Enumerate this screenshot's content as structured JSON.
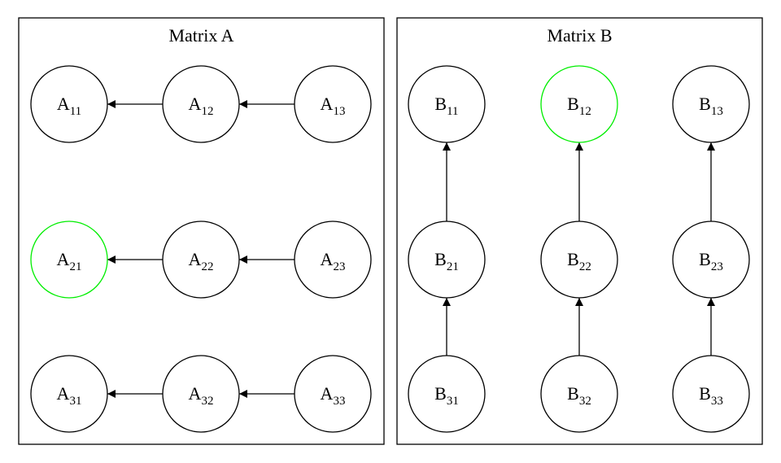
{
  "diagram": {
    "colors": {
      "stroke": "#000000",
      "highlight": "#00ee00",
      "background": "#ffffff"
    },
    "clusters": [
      {
        "id": "a",
        "title": "Matrix A",
        "nodes": [
          {
            "id": "A11",
            "letter": "A",
            "sub": "11",
            "highlight": false
          },
          {
            "id": "A12",
            "letter": "A",
            "sub": "12",
            "highlight": false
          },
          {
            "id": "A13",
            "letter": "A",
            "sub": "13",
            "highlight": false
          },
          {
            "id": "A21",
            "letter": "A",
            "sub": "21",
            "highlight": true
          },
          {
            "id": "A22",
            "letter": "A",
            "sub": "22",
            "highlight": false
          },
          {
            "id": "A23",
            "letter": "A",
            "sub": "23",
            "highlight": false
          },
          {
            "id": "A31",
            "letter": "A",
            "sub": "31",
            "highlight": false
          },
          {
            "id": "A32",
            "letter": "A",
            "sub": "32",
            "highlight": false
          },
          {
            "id": "A33",
            "letter": "A",
            "sub": "33",
            "highlight": false
          }
        ],
        "edges": [
          {
            "from": "A12",
            "to": "A11"
          },
          {
            "from": "A13",
            "to": "A12"
          },
          {
            "from": "A22",
            "to": "A21"
          },
          {
            "from": "A23",
            "to": "A22"
          },
          {
            "from": "A32",
            "to": "A31"
          },
          {
            "from": "A33",
            "to": "A32"
          }
        ]
      },
      {
        "id": "b",
        "title": "Matrix B",
        "nodes": [
          {
            "id": "B11",
            "letter": "B",
            "sub": "11",
            "highlight": false
          },
          {
            "id": "B12",
            "letter": "B",
            "sub": "12",
            "highlight": true
          },
          {
            "id": "B13",
            "letter": "B",
            "sub": "13",
            "highlight": false
          },
          {
            "id": "B21",
            "letter": "B",
            "sub": "21",
            "highlight": false
          },
          {
            "id": "B22",
            "letter": "B",
            "sub": "22",
            "highlight": false
          },
          {
            "id": "B23",
            "letter": "B",
            "sub": "23",
            "highlight": false
          },
          {
            "id": "B31",
            "letter": "B",
            "sub": "31",
            "highlight": false
          },
          {
            "id": "B32",
            "letter": "B",
            "sub": "32",
            "highlight": false
          },
          {
            "id": "B33",
            "letter": "B",
            "sub": "33",
            "highlight": false
          }
        ],
        "edges": [
          {
            "from": "B21",
            "to": "B11"
          },
          {
            "from": "B22",
            "to": "B12"
          },
          {
            "from": "B23",
            "to": "B13"
          },
          {
            "from": "B31",
            "to": "B21"
          },
          {
            "from": "B32",
            "to": "B22"
          },
          {
            "from": "B33",
            "to": "B23"
          }
        ]
      }
    ]
  }
}
